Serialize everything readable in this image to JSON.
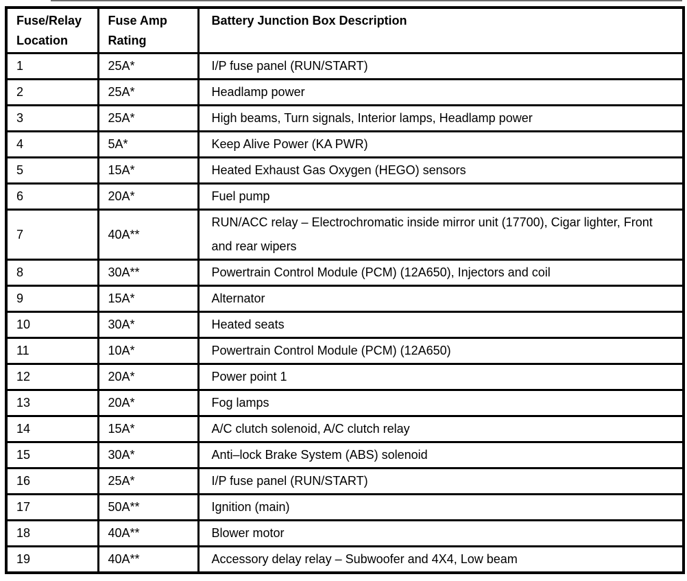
{
  "colors": {
    "border": "#000000",
    "text": "#000000",
    "background": "#ffffff"
  },
  "table": {
    "headers": {
      "location": "Fuse/Relay\nLocation",
      "rating": "Fuse Amp\nRating",
      "description": "Battery Junction Box Description"
    },
    "rows": [
      {
        "location": "1",
        "rating": "25A*",
        "description": "I/P fuse panel (RUN/START)"
      },
      {
        "location": "2",
        "rating": "25A*",
        "description": "Headlamp power"
      },
      {
        "location": "3",
        "rating": "25A*",
        "description": "High beams, Turn signals, Interior lamps, Headlamp power"
      },
      {
        "location": "4",
        "rating": "5A*",
        "description": "Keep Alive Power (KA PWR)"
      },
      {
        "location": "5",
        "rating": "15A*",
        "description": "Heated Exhaust Gas Oxygen (HEGO) sensors"
      },
      {
        "location": "6",
        "rating": "20A*",
        "description": "Fuel pump"
      },
      {
        "location": "7",
        "rating": "40A**",
        "description": "RUN/ACC relay – Electrochromatic inside mirror unit (17700), Cigar lighter, Front and rear wipers"
      },
      {
        "location": "8",
        "rating": "30A**",
        "description": "Powertrain Control Module (PCM) (12A650), Injectors and coil"
      },
      {
        "location": "9",
        "rating": "15A*",
        "description": "Alternator"
      },
      {
        "location": "10",
        "rating": "30A*",
        "description": "Heated seats"
      },
      {
        "location": "11",
        "rating": "10A*",
        "description": "Powertrain Control Module (PCM) (12A650)"
      },
      {
        "location": "12",
        "rating": "20A*",
        "description": "Power point 1"
      },
      {
        "location": "13",
        "rating": "20A*",
        "description": "Fog lamps"
      },
      {
        "location": "14",
        "rating": "15A*",
        "description": "A/C clutch solenoid, A/C clutch relay"
      },
      {
        "location": "15",
        "rating": "30A*",
        "description": "Anti–lock Brake System (ABS) solenoid"
      },
      {
        "location": "16",
        "rating": "25A*",
        "description": "I/P fuse panel (RUN/START)"
      },
      {
        "location": "17",
        "rating": "50A**",
        "description": "Ignition (main)"
      },
      {
        "location": "18",
        "rating": "40A**",
        "description": "Blower motor"
      },
      {
        "location": "19",
        "rating": "40A**",
        "description": "Accessory delay relay – Subwoofer and 4X4, Low beam"
      }
    ]
  }
}
